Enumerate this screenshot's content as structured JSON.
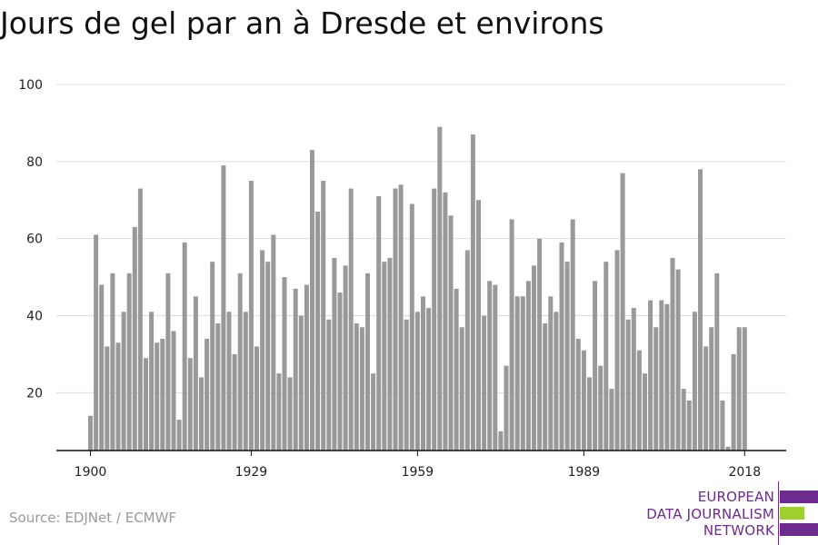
{
  "chart_data": {
    "type": "bar",
    "title": "Jours de gel par an à Dresde et environs",
    "xlabel": "",
    "ylabel": "",
    "ylim": [
      5,
      100
    ],
    "yticks": [
      20,
      40,
      60,
      80,
      100
    ],
    "xticks": [
      1900,
      1929,
      1959,
      1989,
      2018
    ],
    "bar_color": "#999999",
    "x": [
      1900,
      1901,
      1902,
      1903,
      1904,
      1905,
      1906,
      1907,
      1908,
      1909,
      1910,
      1911,
      1912,
      1913,
      1914,
      1915,
      1916,
      1917,
      1918,
      1919,
      1920,
      1921,
      1922,
      1923,
      1924,
      1925,
      1926,
      1927,
      1928,
      1929,
      1930,
      1931,
      1932,
      1933,
      1934,
      1935,
      1936,
      1937,
      1938,
      1939,
      1940,
      1941,
      1942,
      1943,
      1944,
      1945,
      1946,
      1947,
      1948,
      1949,
      1950,
      1951,
      1952,
      1953,
      1954,
      1955,
      1956,
      1957,
      1958,
      1959,
      1960,
      1961,
      1962,
      1963,
      1964,
      1965,
      1966,
      1967,
      1968,
      1969,
      1970,
      1971,
      1972,
      1973,
      1974,
      1975,
      1976,
      1977,
      1978,
      1979,
      1980,
      1981,
      1982,
      1983,
      1984,
      1985,
      1986,
      1987,
      1988,
      1989,
      1990,
      1991,
      1992,
      1993,
      1994,
      1995,
      1996,
      1997,
      1998,
      1999,
      2000,
      2001,
      2002,
      2003,
      2004,
      2005,
      2006,
      2007,
      2008,
      2009,
      2010,
      2011,
      2012,
      2013,
      2014,
      2015,
      2016,
      2017,
      2018
    ],
    "values": [
      14,
      61,
      48,
      32,
      51,
      33,
      41,
      51,
      63,
      73,
      29,
      41,
      33,
      34,
      51,
      36,
      13,
      59,
      29,
      45,
      24,
      34,
      54,
      38,
      79,
      41,
      30,
      51,
      41,
      75,
      32,
      57,
      54,
      61,
      25,
      50,
      24,
      47,
      40,
      48,
      83,
      67,
      75,
      39,
      55,
      46,
      53,
      73,
      38,
      37,
      51,
      25,
      71,
      54,
      55,
      73,
      74,
      39,
      69,
      41,
      45,
      42,
      73,
      89,
      72,
      66,
      47,
      37,
      57,
      87,
      70,
      40,
      49,
      48,
      10,
      27,
      65,
      45,
      45,
      49,
      53,
      60,
      38,
      45,
      41,
      59,
      54,
      65,
      34,
      31,
      24,
      49,
      27,
      54,
      21,
      57,
      77,
      39,
      42,
      31,
      25,
      44,
      37,
      44,
      43,
      55,
      52,
      21,
      18,
      41,
      78,
      32,
      37,
      51,
      18,
      6,
      30,
      37,
      37
    ]
  },
  "source": "Source: EDJNet / ECMWF",
  "logo": {
    "lines": [
      "EUROPEAN",
      "DATA JOURNALISM",
      "NETWORK"
    ],
    "colors": {
      "purple": "#6d2a8f",
      "green": "#9ed12f"
    }
  }
}
